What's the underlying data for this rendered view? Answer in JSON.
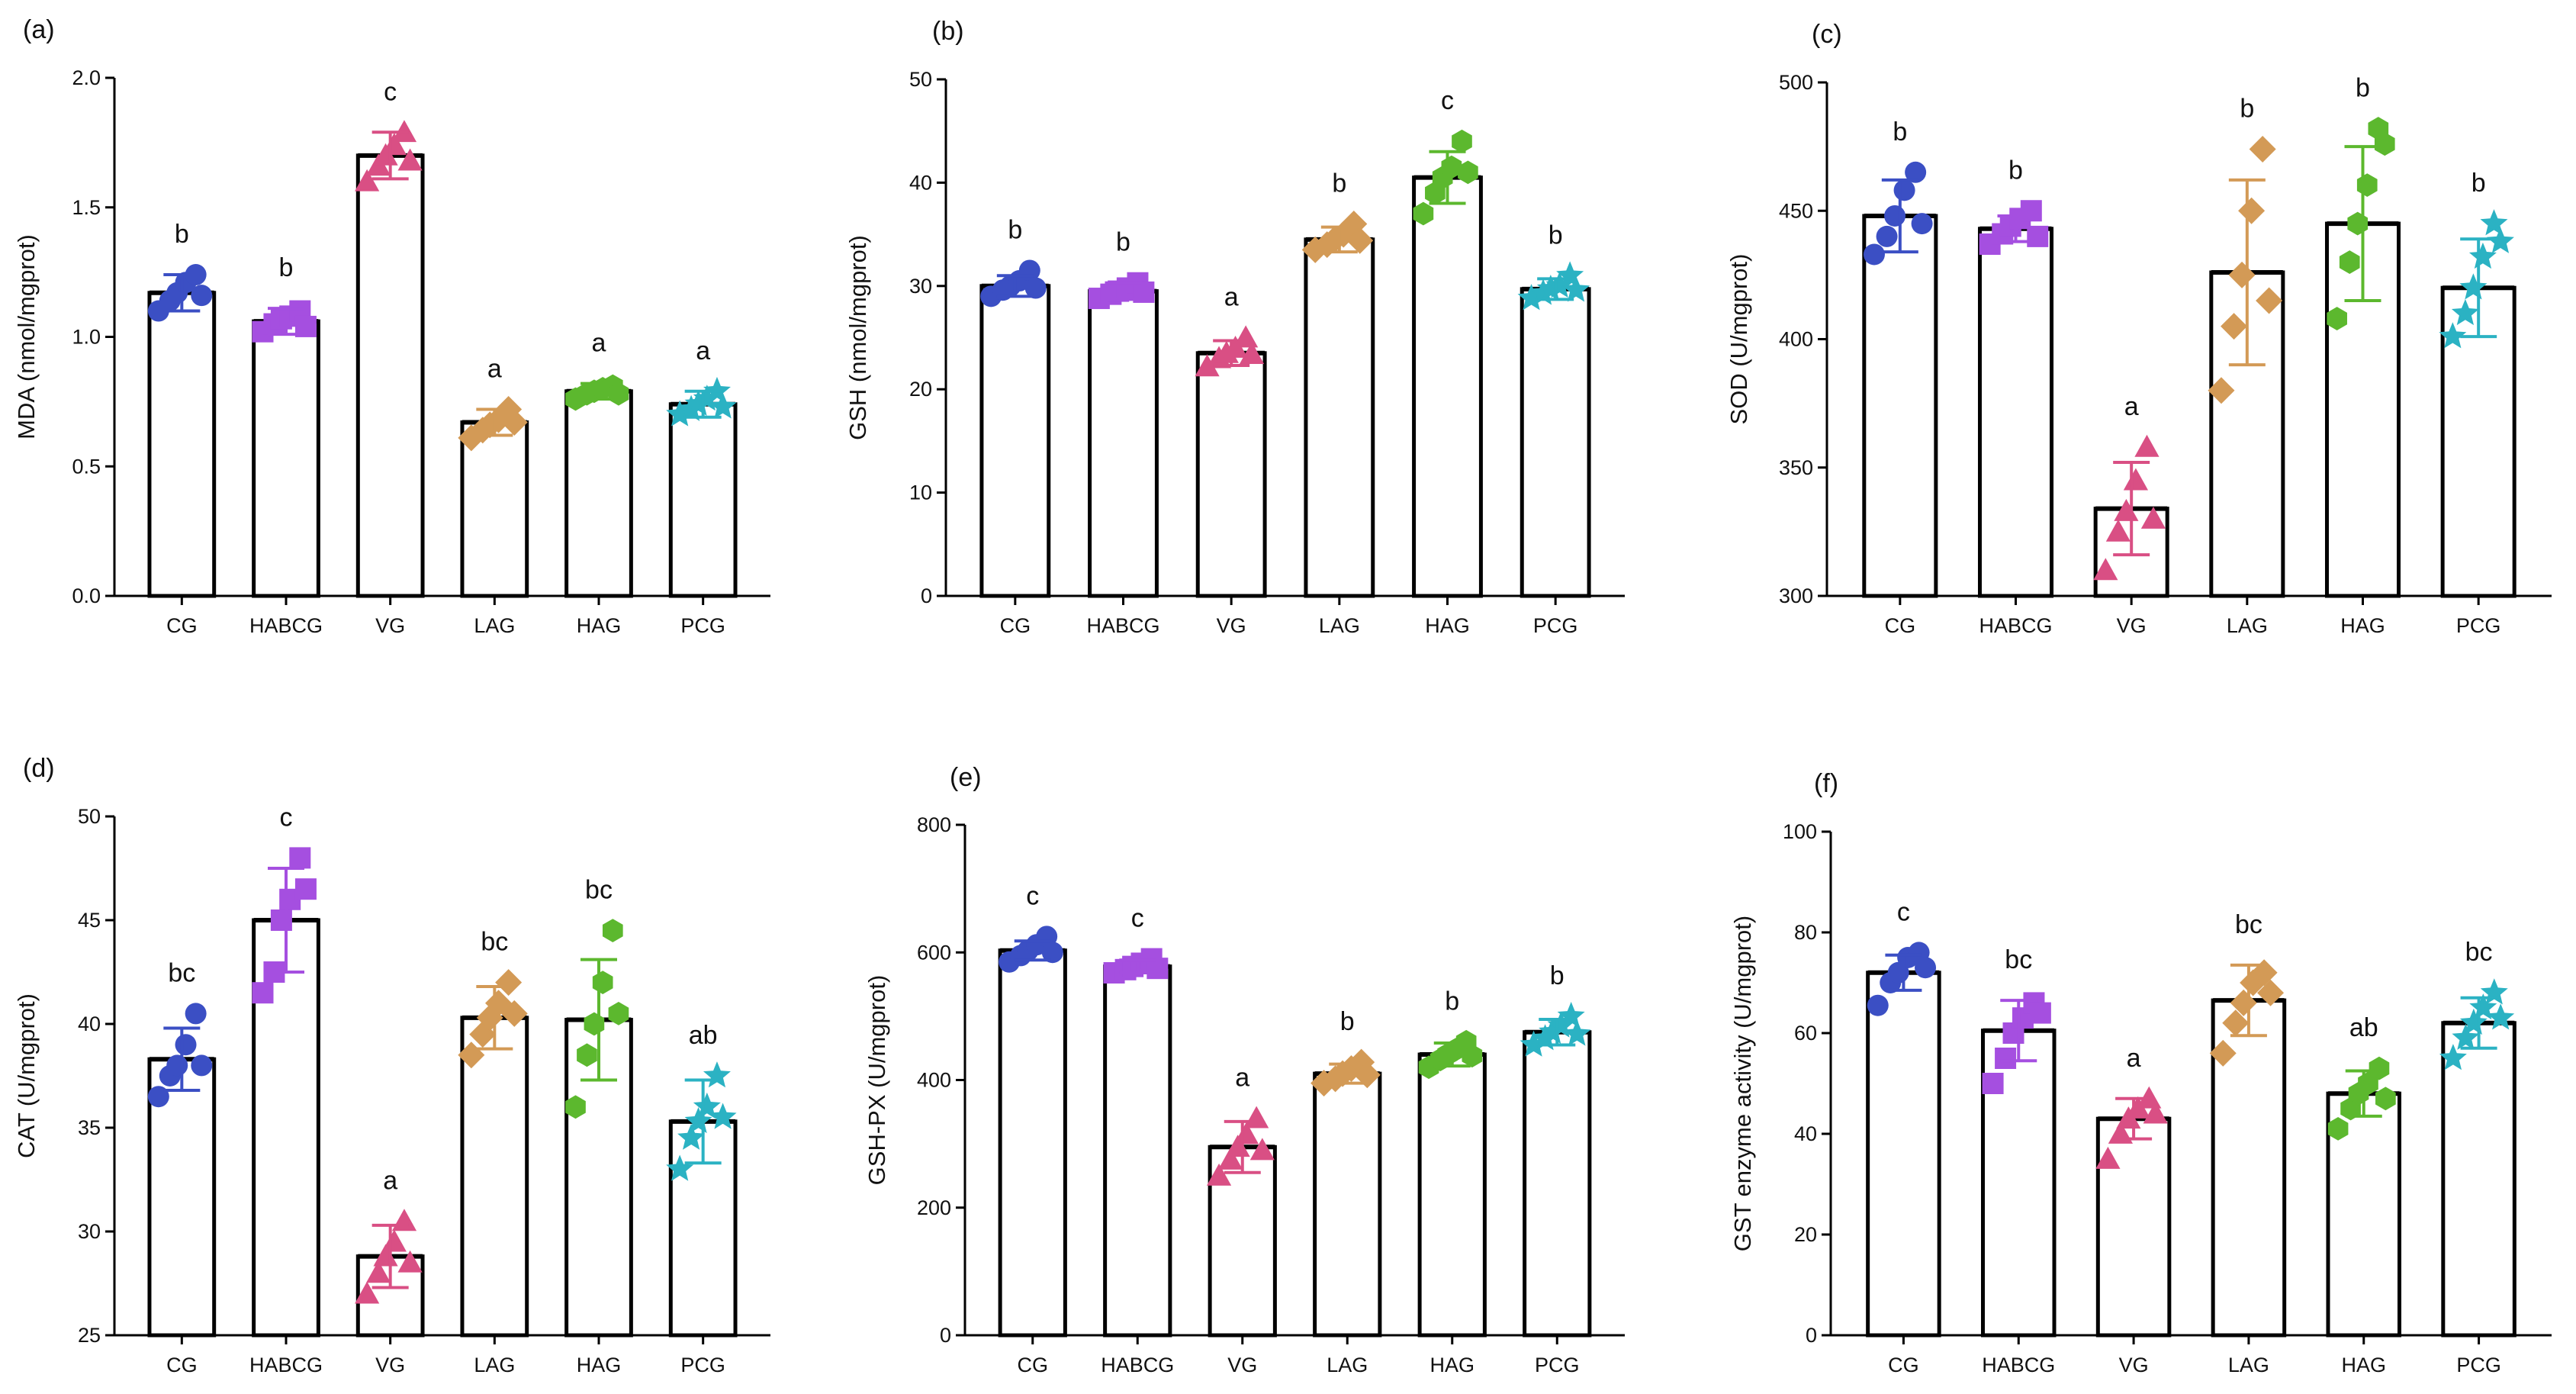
{
  "colors": {
    "CG": "#3b4fc4",
    "HABCG": "#a54fe0",
    "VG": "#d94f84",
    "LAG": "#d39a56",
    "HAG": "#5cb82e",
    "PCG": "#2bb2c3"
  },
  "markers": {
    "CG": "circle",
    "HABCG": "square",
    "VG": "triangle",
    "LAG": "diamond",
    "HAG": "hexagon",
    "PCG": "star"
  },
  "chart_data": [
    {
      "panel_label": "(a)",
      "type": "bar",
      "ylabel": "MDA (nmol/mgprot)",
      "categories": [
        "CG",
        "HABCG",
        "VG",
        "LAG",
        "HAG",
        "PCG"
      ],
      "ylim": [
        0,
        2.0
      ],
      "yticks": [
        0,
        0.5,
        1.0,
        1.5,
        2.0
      ],
      "ytick_labels": [
        "0.0",
        "0.5",
        "1.0",
        "1.5",
        "2.0"
      ],
      "values": [
        1.17,
        1.06,
        1.7,
        0.67,
        0.79,
        0.74
      ],
      "errors": [
        0.07,
        0.05,
        0.09,
        0.05,
        0.03,
        0.05
      ],
      "letters": [
        "b",
        "b",
        "c",
        "a",
        "a",
        "a"
      ],
      "points": [
        [
          1.1,
          1.14,
          1.17,
          1.21,
          1.24,
          1.16
        ],
        [
          1.02,
          1.05,
          1.07,
          1.08,
          1.1,
          1.04
        ],
        [
          1.6,
          1.66,
          1.7,
          1.74,
          1.79,
          1.68
        ],
        [
          0.61,
          0.64,
          0.66,
          0.68,
          0.72,
          0.67
        ],
        [
          0.76,
          0.78,
          0.79,
          0.8,
          0.81,
          0.78
        ],
        [
          0.7,
          0.72,
          0.74,
          0.76,
          0.79,
          0.73
        ]
      ]
    },
    {
      "panel_label": "(b)",
      "type": "bar",
      "ylabel": "GSH (nmol/mgprot)",
      "categories": [
        "CG",
        "HABCG",
        "VG",
        "LAG",
        "HAG",
        "PCG"
      ],
      "ylim": [
        0,
        50
      ],
      "yticks": [
        0,
        10,
        20,
        30,
        40,
        50
      ],
      "ytick_labels": [
        "0",
        "10",
        "20",
        "30",
        "40",
        "50"
      ],
      "values": [
        30.0,
        29.5,
        23.5,
        34.5,
        40.5,
        29.7
      ],
      "errors": [
        1.0,
        0.8,
        1.2,
        1.2,
        2.5,
        1.0
      ],
      "letters": [
        "b",
        "b",
        "a",
        "b",
        "c",
        "b"
      ],
      "points": [
        [
          29.0,
          29.6,
          30.0,
          30.5,
          31.5,
          29.8
        ],
        [
          28.8,
          29.2,
          29.5,
          29.8,
          30.3,
          29.4
        ],
        [
          22.2,
          23.0,
          23.5,
          24.0,
          25.0,
          23.4
        ],
        [
          33.5,
          34.0,
          34.5,
          35.0,
          36.0,
          34.4
        ],
        [
          37.0,
          39.0,
          40.5,
          41.5,
          44.0,
          41.0
        ],
        [
          28.8,
          29.3,
          29.7,
          30.0,
          31.0,
          29.6
        ]
      ]
    },
    {
      "panel_label": "(c)",
      "type": "bar",
      "ylabel": "SOD (U/mgprot)",
      "categories": [
        "CG",
        "HABCG",
        "VG",
        "LAG",
        "HAG",
        "PCG"
      ],
      "ylim": [
        300,
        500
      ],
      "yticks": [
        300,
        350,
        400,
        450,
        500
      ],
      "ytick_labels": [
        "300",
        "350",
        "400",
        "450",
        "500"
      ],
      "values": [
        448,
        443,
        334,
        426,
        445,
        420
      ],
      "errors": [
        14,
        5,
        18,
        36,
        30,
        19
      ],
      "letters": [
        "b",
        "b",
        "a",
        "b",
        "b",
        "b"
      ],
      "points": [
        [
          433,
          440,
          448,
          458,
          465,
          445
        ],
        [
          437,
          441,
          444,
          447,
          450,
          440
        ],
        [
          310,
          325,
          333,
          345,
          358,
          330
        ],
        [
          380,
          405,
          425,
          450,
          474,
          415
        ],
        [
          408,
          430,
          445,
          460,
          482,
          476
        ],
        [
          401,
          410,
          420,
          432,
          445,
          438
        ]
      ]
    },
    {
      "panel_label": "(d)",
      "type": "bar",
      "ylabel": "CAT (U/mgprot)",
      "categories": [
        "CG",
        "HABCG",
        "VG",
        "LAG",
        "HAG",
        "PCG"
      ],
      "ylim": [
        25,
        50
      ],
      "yticks": [
        25,
        30,
        35,
        40,
        45,
        50
      ],
      "ytick_labels": [
        "25",
        "30",
        "35",
        "40",
        "45",
        "50"
      ],
      "values": [
        38.3,
        45.0,
        28.8,
        40.3,
        40.2,
        35.3
      ],
      "errors": [
        1.5,
        2.5,
        1.5,
        1.5,
        2.9,
        2.0
      ],
      "letters": [
        "bc",
        "c",
        "a",
        "bc",
        "bc",
        "ab"
      ],
      "points": [
        [
          36.5,
          37.5,
          38.0,
          39.0,
          40.5,
          38.0
        ],
        [
          41.5,
          42.5,
          45.0,
          46.0,
          48.0,
          46.5
        ],
        [
          27.0,
          28.0,
          28.8,
          29.5,
          30.5,
          28.5
        ],
        [
          38.5,
          39.5,
          40.3,
          41.0,
          42.0,
          40.5
        ],
        [
          36.0,
          38.5,
          40.0,
          42.0,
          44.5,
          40.5
        ],
        [
          33.0,
          34.5,
          35.3,
          36.0,
          37.5,
          35.5
        ]
      ]
    },
    {
      "panel_label": "(e)",
      "type": "bar",
      "ylabel": "GSH-PX (U/mgprot)",
      "categories": [
        "CG",
        "HABCG",
        "VG",
        "LAG",
        "HAG",
        "PCG"
      ],
      "ylim": [
        0,
        800
      ],
      "yticks": [
        0,
        200,
        400,
        600,
        800
      ],
      "ytick_labels": [
        "0",
        "200",
        "400",
        "600",
        "800"
      ],
      "values": [
        603,
        578,
        295,
        410,
        440,
        475
      ],
      "errors": [
        15,
        10,
        40,
        15,
        18,
        20
      ],
      "letters": [
        "c",
        "c",
        "a",
        "b",
        "b",
        "b"
      ],
      "points": [
        [
          585,
          595,
          603,
          612,
          625,
          600
        ],
        [
          568,
          573,
          578,
          583,
          590,
          575
        ],
        [
          250,
          275,
          295,
          315,
          340,
          290
        ],
        [
          395,
          402,
          410,
          418,
          428,
          408
        ],
        [
          420,
          432,
          440,
          448,
          460,
          438
        ],
        [
          455,
          465,
          475,
          485,
          500,
          472
        ]
      ]
    },
    {
      "panel_label": "(f)",
      "type": "bar",
      "ylabel": "GST enzyme activity  (U/mgprot)",
      "categories": [
        "CG",
        "HABCG",
        "VG",
        "LAG",
        "HAG",
        "PCG"
      ],
      "ylim": [
        0,
        100
      ],
      "yticks": [
        0,
        20,
        40,
        60,
        80,
        100
      ],
      "ytick_labels": [
        "0",
        "20",
        "40",
        "60",
        "80",
        "100"
      ],
      "values": [
        72.0,
        60.5,
        43.0,
        66.5,
        48.0,
        62.0
      ],
      "errors": [
        3.5,
        6.0,
        4.0,
        7.0,
        4.5,
        5.0
      ],
      "letters": [
        "c",
        "bc",
        "a",
        "bc",
        "ab",
        "bc"
      ],
      "points": [
        [
          65.5,
          70.0,
          72.0,
          75.0,
          76.0,
          73.0
        ],
        [
          50.0,
          55.0,
          60.0,
          63.0,
          66.0,
          64.0
        ],
        [
          35.0,
          40.0,
          43.0,
          45.0,
          47.0,
          44.0
        ],
        [
          56.0,
          62.0,
          66.0,
          70.0,
          72.0,
          68.0
        ],
        [
          41.0,
          45.0,
          48.0,
          50.0,
          53.0,
          47.0
        ],
        [
          55.0,
          59.0,
          62.0,
          65.0,
          68.0,
          63.0
        ]
      ]
    }
  ]
}
